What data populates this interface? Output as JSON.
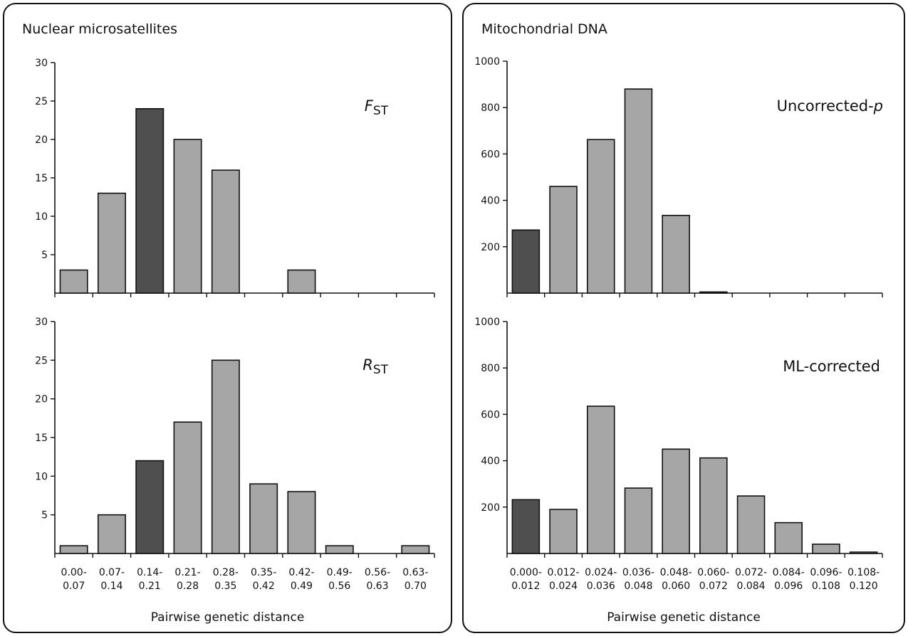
{
  "panels": [
    {
      "title": "Nuclear microsatellites",
      "xlabel": "Pairwise genetic distance"
    },
    {
      "title": "Mitochondrial DNA",
      "xlabel": "Pairwise genetic distance"
    }
  ],
  "colors": {
    "bar_light": "#a6a6a6",
    "bar_dark": "#4f4f4f",
    "axis": "#111111"
  },
  "chart_data": [
    {
      "type": "bar",
      "panel": "Nuclear microsatellites",
      "label_main": "F",
      "label_sub": "ST",
      "categories": [
        "0.00-\n0.07",
        "0.07-\n0.14",
        "0.14-\n0.21",
        "0.21-\n0.28",
        "0.28-\n0.35",
        "0.35-\n0.42",
        "0.42-\n0.49",
        "0.49-\n0.56",
        "0.56-\n0.63",
        "0.63-\n0.70"
      ],
      "values": [
        3,
        13,
        24,
        20,
        16,
        0,
        3,
        0,
        0,
        0
      ],
      "highlight_index": 2,
      "ylim": [
        0,
        30
      ],
      "yticks": [
        5,
        10,
        15,
        20,
        25,
        30
      ]
    },
    {
      "type": "bar",
      "panel": "Nuclear microsatellites",
      "label_main": "R",
      "label_sub": "ST",
      "categories": [
        "0.00-\n0.07",
        "0.07-\n0.14",
        "0.14-\n0.21",
        "0.21-\n0.28",
        "0.28-\n0.35",
        "0.35-\n0.42",
        "0.42-\n0.49",
        "0.49-\n0.56",
        "0.56-\n0.63",
        "0.63-\n0.70"
      ],
      "values": [
        1,
        5,
        12,
        17,
        25,
        9,
        8,
        1,
        0,
        1
      ],
      "highlight_index": 2,
      "ylim": [
        0,
        30
      ],
      "yticks": [
        5,
        10,
        15,
        20,
        25,
        30
      ]
    },
    {
      "type": "bar",
      "panel": "Mitochondrial DNA",
      "label_main": "Uncorrected-",
      "label_italic": "p",
      "categories": [
        "0.000-\n0.012",
        "0.012-\n0.024",
        "0.024-\n0.036",
        "0.036-\n0.048",
        "0.048-\n0.060",
        "0.060-\n0.072",
        "0.072-\n0.084",
        "0.084-\n0.096",
        "0.096-\n0.108",
        "0.108-\n0.120"
      ],
      "values": [
        272,
        460,
        662,
        880,
        335,
        5,
        0,
        0,
        0,
        0
      ],
      "highlight_index": 0,
      "ylim": [
        0,
        1000
      ],
      "yticks": [
        200,
        400,
        600,
        800,
        1000
      ]
    },
    {
      "type": "bar",
      "panel": "Mitochondrial DNA",
      "label_main": "ML-corrected",
      "categories": [
        "0.000-\n0.012",
        "0.012-\n0.024",
        "0.024-\n0.036",
        "0.036-\n0.048",
        "0.048-\n0.060",
        "0.060-\n0.072",
        "0.072-\n0.084",
        "0.084-\n0.096",
        "0.096-\n0.108",
        "0.108-\n0.120"
      ],
      "values": [
        232,
        190,
        635,
        282,
        450,
        412,
        248,
        133,
        40,
        6
      ],
      "highlight_index": 0,
      "ylim": [
        0,
        1000
      ],
      "yticks": [
        200,
        400,
        600,
        800,
        1000
      ]
    }
  ]
}
